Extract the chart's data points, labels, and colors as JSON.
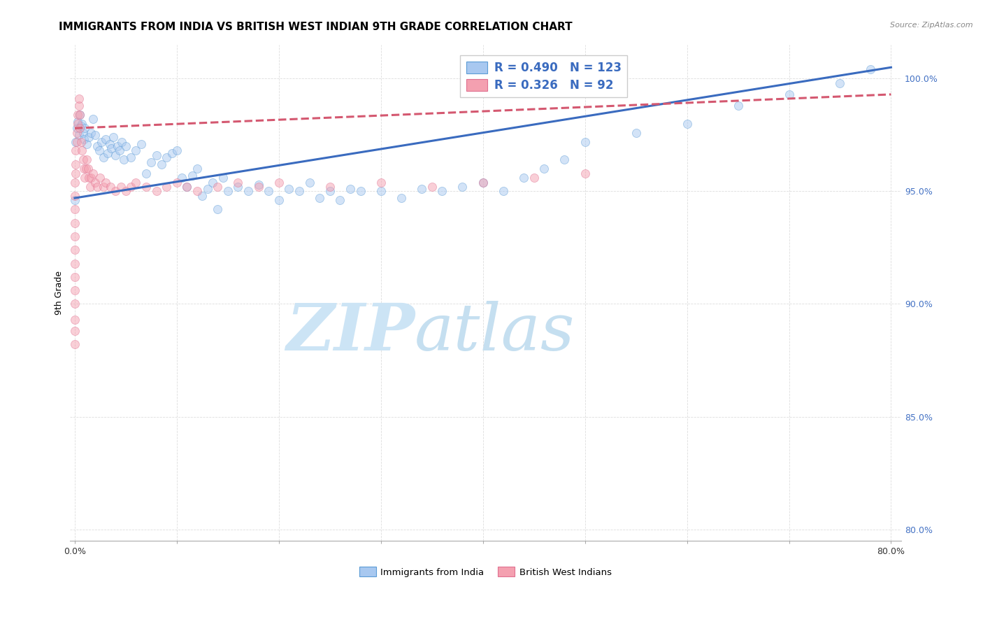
{
  "title": "IMMIGRANTS FROM INDIA VS BRITISH WEST INDIAN 9TH GRADE CORRELATION CHART",
  "source": "Source: ZipAtlas.com",
  "ylabel": "9th Grade",
  "y_ticks": [
    80.0,
    85.0,
    90.0,
    95.0,
    100.0
  ],
  "y_tick_labels": [
    "80.0%",
    "85.0%",
    "90.0%",
    "95.0%",
    "100.0%"
  ],
  "legend1_label": "Immigrants from India",
  "legend2_label": "British West Indians",
  "legend_r1": "R = 0.490",
  "legend_n1": "N = 123",
  "legend_r2": "R = 0.326",
  "legend_n2": "N = 92",
  "color_india": "#a8c8f0",
  "color_bwi": "#f4a0b0",
  "color_india_line": "#3a6bbf",
  "color_bwi_line": "#d45870",
  "color_india_edge": "#5b9bd5",
  "color_bwi_edge": "#e07090",
  "watermark_zip": "ZIP",
  "watermark_atlas": "atlas",
  "watermark_color_zip": "#cce4f5",
  "watermark_color_atlas": "#c5dff0",
  "xlim": [
    -0.5,
    81.0
  ],
  "ylim": [
    79.5,
    101.5
  ],
  "india_line_x0": 0.0,
  "india_line_x1": 80.0,
  "india_line_y0": 94.7,
  "india_line_y1": 100.5,
  "bwi_line_x0": 0.0,
  "bwi_line_x1": 80.0,
  "bwi_line_y0": 97.8,
  "bwi_line_y1": 99.3,
  "title_fontsize": 11,
  "axis_label_fontsize": 9,
  "tick_label_fontsize": 9,
  "scatter_size": 75,
  "scatter_alpha": 0.5,
  "line_width": 2.2,
  "india_scatter_x": [
    0.0,
    0.1,
    0.2,
    0.3,
    0.4,
    0.5,
    0.6,
    0.7,
    0.8,
    0.9,
    1.0,
    1.2,
    1.4,
    1.6,
    1.8,
    2.0,
    2.2,
    2.4,
    2.6,
    2.8,
    3.0,
    3.2,
    3.4,
    3.6,
    3.8,
    4.0,
    4.2,
    4.4,
    4.6,
    4.8,
    5.0,
    5.5,
    6.0,
    6.5,
    7.0,
    7.5,
    8.0,
    8.5,
    9.0,
    9.5,
    10.0,
    10.5,
    11.0,
    11.5,
    12.0,
    12.5,
    13.0,
    13.5,
    14.0,
    14.5,
    15.0,
    16.0,
    17.0,
    18.0,
    19.0,
    20.0,
    21.0,
    22.0,
    23.0,
    24.0,
    25.0,
    26.0,
    27.0,
    28.0,
    30.0,
    32.0,
    34.0,
    36.0,
    38.0,
    40.0,
    42.0,
    44.0,
    46.0,
    48.0,
    50.0,
    55.0,
    60.0,
    65.0,
    70.0,
    75.0,
    78.0
  ],
  "india_scatter_y": [
    94.6,
    97.2,
    97.8,
    98.1,
    97.5,
    98.4,
    97.9,
    98.0,
    97.6,
    97.3,
    97.8,
    97.1,
    97.4,
    97.6,
    98.2,
    97.5,
    97.0,
    96.8,
    97.2,
    96.5,
    97.3,
    96.7,
    97.1,
    96.9,
    97.4,
    96.6,
    97.0,
    96.8,
    97.2,
    96.4,
    97.0,
    96.5,
    96.8,
    97.1,
    95.8,
    96.3,
    96.6,
    96.2,
    96.5,
    96.7,
    96.8,
    95.6,
    95.2,
    95.7,
    96.0,
    94.8,
    95.1,
    95.4,
    94.2,
    95.6,
    95.0,
    95.2,
    95.0,
    95.3,
    95.0,
    94.6,
    95.1,
    95.0,
    95.4,
    94.7,
    95.0,
    94.6,
    95.1,
    95.0,
    95.0,
    94.7,
    95.1,
    95.0,
    95.2,
    95.4,
    95.0,
    95.6,
    96.0,
    96.4,
    97.2,
    97.6,
    98.0,
    98.8,
    99.3,
    99.8,
    100.4
  ],
  "bwi_scatter_x": [
    0.0,
    0.0,
    0.0,
    0.0,
    0.0,
    0.0,
    0.0,
    0.0,
    0.0,
    0.0,
    0.0,
    0.0,
    0.0,
    0.1,
    0.1,
    0.1,
    0.2,
    0.2,
    0.3,
    0.3,
    0.4,
    0.4,
    0.5,
    0.5,
    0.6,
    0.7,
    0.8,
    0.9,
    1.0,
    1.1,
    1.2,
    1.3,
    1.4,
    1.5,
    1.6,
    1.8,
    2.0,
    2.2,
    2.5,
    2.8,
    3.0,
    3.5,
    4.0,
    4.5,
    5.0,
    5.5,
    6.0,
    7.0,
    8.0,
    9.0,
    10.0,
    11.0,
    12.0,
    14.0,
    16.0,
    18.0,
    20.0,
    25.0,
    30.0,
    35.0,
    40.0,
    45.0,
    50.0
  ],
  "bwi_scatter_y": [
    88.2,
    88.8,
    89.3,
    90.0,
    90.6,
    91.2,
    91.8,
    92.4,
    93.0,
    93.6,
    94.2,
    94.8,
    95.4,
    95.8,
    96.2,
    96.8,
    97.2,
    97.6,
    98.0,
    98.4,
    98.8,
    99.1,
    98.4,
    97.8,
    97.2,
    96.8,
    96.4,
    96.0,
    95.6,
    96.0,
    96.4,
    96.0,
    95.6,
    95.2,
    95.6,
    95.8,
    95.4,
    95.2,
    95.6,
    95.2,
    95.4,
    95.2,
    95.0,
    95.2,
    95.0,
    95.2,
    95.4,
    95.2,
    95.0,
    95.2,
    95.4,
    95.2,
    95.0,
    95.2,
    95.4,
    95.2,
    95.4,
    95.2,
    95.4,
    95.2,
    95.4,
    95.6,
    95.8
  ]
}
